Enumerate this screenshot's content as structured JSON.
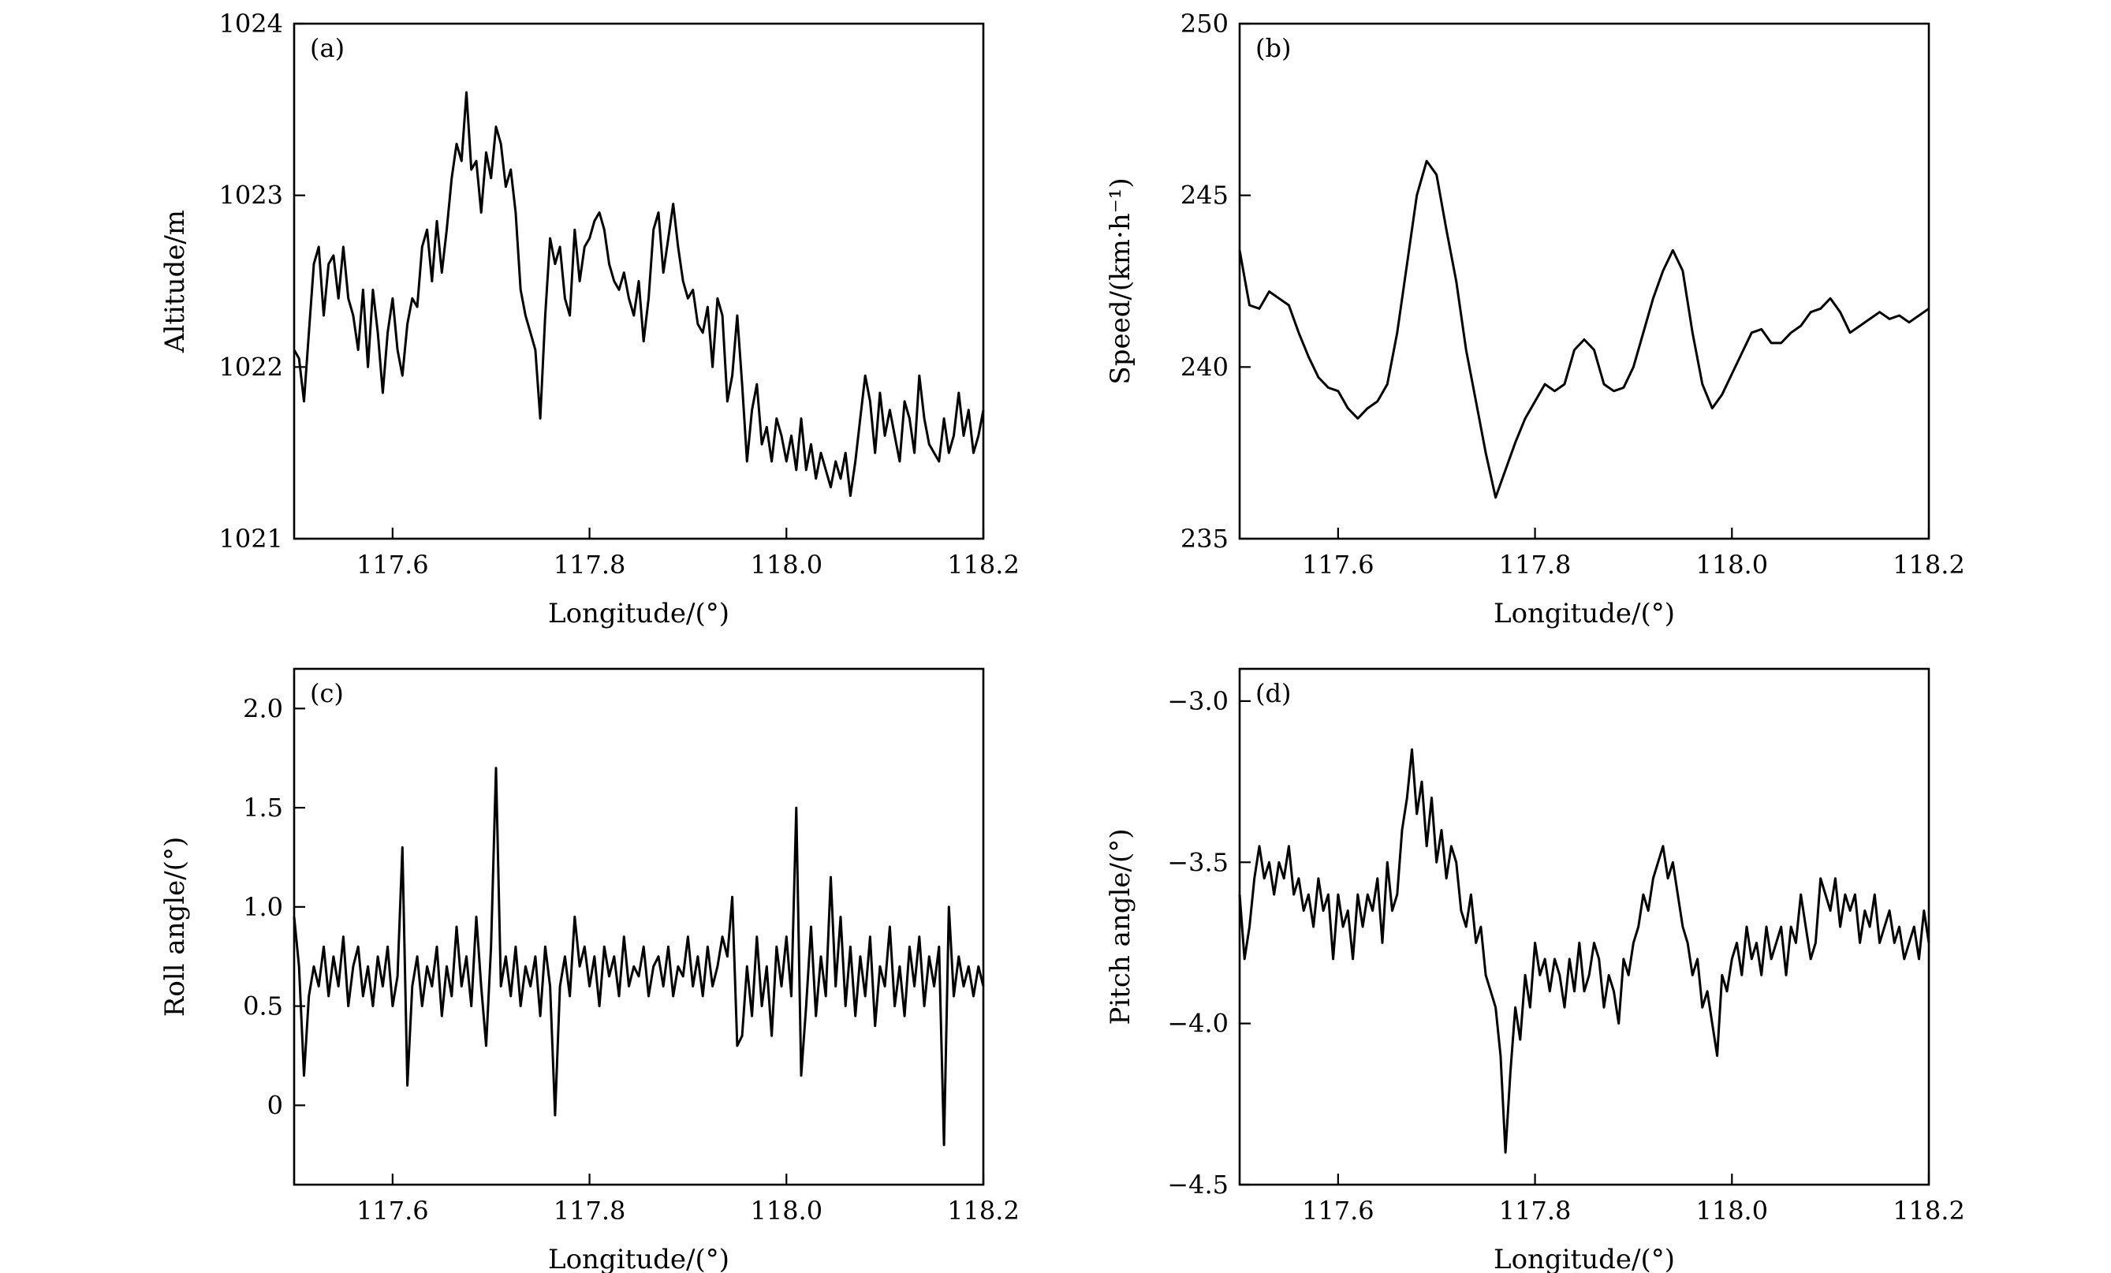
{
  "chart_data": [
    {
      "type": "line",
      "panel_label": "(a)",
      "xlabel": "Longitude/(°)",
      "ylabel": "Altitude/m",
      "xlim": [
        117.5,
        118.2
      ],
      "ylim": [
        1021,
        1024
      ],
      "xticks": [
        117.6,
        117.8,
        118.0,
        118.2
      ],
      "xtick_labels": [
        "117.6",
        "117.8",
        "118.0",
        "118.2"
      ],
      "yticks": [
        1021,
        1022,
        1023,
        1024
      ],
      "ytick_labels": [
        "1021",
        "1022",
        "1023",
        "1024"
      ],
      "grid": false,
      "x": [
        117.5,
        117.505,
        117.51,
        117.515,
        117.52,
        117.525,
        117.53,
        117.535,
        117.54,
        117.545,
        117.55,
        117.555,
        117.56,
        117.565,
        117.57,
        117.575,
        117.58,
        117.585,
        117.59,
        117.595,
        117.6,
        117.605,
        117.61,
        117.615,
        117.62,
        117.625,
        117.63,
        117.635,
        117.64,
        117.645,
        117.65,
        117.655,
        117.66,
        117.665,
        117.67,
        117.675,
        117.68,
        117.685,
        117.69,
        117.695,
        117.7,
        117.705,
        117.71,
        117.715,
        117.72,
        117.725,
        117.73,
        117.735,
        117.74,
        117.745,
        117.75,
        117.755,
        117.76,
        117.765,
        117.77,
        117.775,
        117.78,
        117.785,
        117.79,
        117.795,
        117.8,
        117.805,
        117.81,
        117.815,
        117.82,
        117.825,
        117.83,
        117.835,
        117.84,
        117.845,
        117.85,
        117.855,
        117.86,
        117.865,
        117.87,
        117.875,
        117.88,
        117.885,
        117.89,
        117.895,
        117.9,
        117.905,
        117.91,
        117.915,
        117.92,
        117.925,
        117.93,
        117.935,
        117.94,
        117.945,
        117.95,
        117.955,
        117.96,
        117.965,
        117.97,
        117.975,
        117.98,
        117.985,
        117.99,
        117.995,
        118.0,
        118.005,
        118.01,
        118.015,
        118.02,
        118.025,
        118.03,
        118.035,
        118.04,
        118.045,
        118.05,
        118.055,
        118.06,
        118.065,
        118.07,
        118.075,
        118.08,
        118.085,
        118.09,
        118.095,
        118.1,
        118.105,
        118.11,
        118.115,
        118.12,
        118.125,
        118.13,
        118.135,
        118.14,
        118.145,
        118.15,
        118.155,
        118.16,
        118.165,
        118.17,
        118.175,
        118.18,
        118.185,
        118.19,
        118.195,
        118.2
      ],
      "y": [
        1022.1,
        1022.05,
        1021.8,
        1022.2,
        1022.6,
        1022.7,
        1022.3,
        1022.6,
        1022.65,
        1022.4,
        1022.7,
        1022.4,
        1022.3,
        1022.1,
        1022.45,
        1022.0,
        1022.45,
        1022.2,
        1021.85,
        1022.2,
        1022.4,
        1022.1,
        1021.95,
        1022.25,
        1022.4,
        1022.35,
        1022.7,
        1022.8,
        1022.5,
        1022.85,
        1022.55,
        1022.8,
        1023.1,
        1023.3,
        1023.2,
        1023.6,
        1023.15,
        1023.2,
        1022.9,
        1023.25,
        1023.1,
        1023.4,
        1023.3,
        1023.05,
        1023.15,
        1022.9,
        1022.45,
        1022.3,
        1022.2,
        1022.1,
        1021.7,
        1022.3,
        1022.75,
        1022.6,
        1022.7,
        1022.4,
        1022.3,
        1022.8,
        1022.5,
        1022.7,
        1022.75,
        1022.85,
        1022.9,
        1022.8,
        1022.6,
        1022.5,
        1022.45,
        1022.55,
        1022.4,
        1022.3,
        1022.5,
        1022.15,
        1022.4,
        1022.8,
        1022.9,
        1022.55,
        1022.75,
        1022.95,
        1022.7,
        1022.5,
        1022.4,
        1022.45,
        1022.25,
        1022.2,
        1022.35,
        1022.0,
        1022.4,
        1022.3,
        1021.8,
        1021.95,
        1022.3,
        1021.9,
        1021.45,
        1021.75,
        1021.9,
        1021.55,
        1021.65,
        1021.45,
        1021.7,
        1021.6,
        1021.45,
        1021.6,
        1021.4,
        1021.7,
        1021.4,
        1021.55,
        1021.35,
        1021.5,
        1021.4,
        1021.3,
        1021.45,
        1021.35,
        1021.5,
        1021.25,
        1021.45,
        1021.7,
        1021.95,
        1021.8,
        1021.5,
        1021.85,
        1021.6,
        1021.75,
        1021.6,
        1021.45,
        1021.8,
        1021.7,
        1021.5,
        1021.95,
        1021.7,
        1021.55,
        1021.5,
        1021.45,
        1021.7,
        1021.5,
        1021.6,
        1021.85,
        1021.6,
        1021.75,
        1021.5,
        1021.6,
        1021.75
      ]
    },
    {
      "type": "line",
      "panel_label": "(b)",
      "xlabel": "Longitude/(°)",
      "ylabel": "Speed/(km·h⁻¹)",
      "xlim": [
        117.5,
        118.2
      ],
      "ylim": [
        235,
        250
      ],
      "xticks": [
        117.6,
        117.8,
        118.0,
        118.2
      ],
      "xtick_labels": [
        "117.6",
        "117.8",
        "118.0",
        "118.2"
      ],
      "yticks": [
        235,
        240,
        245,
        250
      ],
      "ytick_labels": [
        "235",
        "240",
        "245",
        "250"
      ],
      "grid": false,
      "x": [
        117.5,
        117.51,
        117.52,
        117.53,
        117.54,
        117.55,
        117.56,
        117.57,
        117.58,
        117.59,
        117.6,
        117.61,
        117.62,
        117.63,
        117.64,
        117.65,
        117.66,
        117.67,
        117.68,
        117.69,
        117.7,
        117.71,
        117.72,
        117.73,
        117.74,
        117.75,
        117.76,
        117.77,
        117.78,
        117.79,
        117.8,
        117.81,
        117.82,
        117.83,
        117.84,
        117.85,
        117.86,
        117.87,
        117.88,
        117.89,
        117.9,
        117.91,
        117.92,
        117.93,
        117.94,
        117.95,
        117.96,
        117.97,
        117.98,
        117.99,
        118.0,
        118.01,
        118.02,
        118.03,
        118.04,
        118.05,
        118.06,
        118.07,
        118.08,
        118.09,
        118.1,
        118.11,
        118.12,
        118.13,
        118.14,
        118.15,
        118.16,
        118.17,
        118.18,
        118.19,
        118.2
      ],
      "y": [
        243.4,
        241.8,
        241.7,
        242.2,
        242.0,
        241.8,
        241.0,
        240.3,
        239.7,
        239.4,
        239.3,
        238.8,
        238.5,
        238.8,
        239.0,
        239.5,
        241.0,
        243.0,
        245.0,
        246.0,
        245.6,
        244.0,
        242.5,
        240.5,
        239.0,
        237.5,
        236.2,
        237.0,
        237.8,
        238.5,
        239.0,
        239.5,
        239.3,
        239.5,
        240.5,
        240.8,
        240.5,
        239.5,
        239.3,
        239.4,
        240.0,
        241.0,
        242.0,
        242.8,
        243.4,
        242.8,
        241.0,
        239.5,
        238.8,
        239.2,
        239.8,
        240.4,
        241.0,
        241.1,
        240.7,
        240.7,
        241.0,
        241.2,
        241.6,
        241.7,
        242.0,
        241.6,
        241.0,
        241.2,
        241.4,
        241.6,
        241.4,
        241.5,
        241.3,
        241.5,
        241.7
      ]
    },
    {
      "type": "line",
      "panel_label": "(c)",
      "xlabel": "Longitude/(°)",
      "ylabel": "Roll angle/(°)",
      "xlim": [
        117.5,
        118.2
      ],
      "ylim": [
        -0.4,
        2.2
      ],
      "xticks": [
        117.6,
        117.8,
        118.0,
        118.2
      ],
      "xtick_labels": [
        "117.6",
        "117.8",
        "118.0",
        "118.2"
      ],
      "yticks": [
        0,
        0.5,
        1.0,
        1.5,
        2.0
      ],
      "ytick_labels": [
        "0",
        "0.5",
        "1.0",
        "1.5",
        "2.0"
      ],
      "grid": false,
      "x": [
        117.5,
        117.505,
        117.51,
        117.515,
        117.52,
        117.525,
        117.53,
        117.535,
        117.54,
        117.545,
        117.55,
        117.555,
        117.56,
        117.565,
        117.57,
        117.575,
        117.58,
        117.585,
        117.59,
        117.595,
        117.6,
        117.605,
        117.61,
        117.615,
        117.62,
        117.625,
        117.63,
        117.635,
        117.64,
        117.645,
        117.65,
        117.655,
        117.66,
        117.665,
        117.67,
        117.675,
        117.68,
        117.685,
        117.69,
        117.695,
        117.7,
        117.705,
        117.71,
        117.715,
        117.72,
        117.725,
        117.73,
        117.735,
        117.74,
        117.745,
        117.75,
        117.755,
        117.76,
        117.765,
        117.77,
        117.775,
        117.78,
        117.785,
        117.79,
        117.795,
        117.8,
        117.805,
        117.81,
        117.815,
        117.82,
        117.825,
        117.83,
        117.835,
        117.84,
        117.845,
        117.85,
        117.855,
        117.86,
        117.865,
        117.87,
        117.875,
        117.88,
        117.885,
        117.89,
        117.895,
        117.9,
        117.905,
        117.91,
        117.915,
        117.92,
        117.925,
        117.93,
        117.935,
        117.94,
        117.945,
        117.95,
        117.955,
        117.96,
        117.965,
        117.97,
        117.975,
        117.98,
        117.985,
        117.99,
        117.995,
        118.0,
        118.005,
        118.01,
        118.015,
        118.02,
        118.025,
        118.03,
        118.035,
        118.04,
        118.045,
        118.05,
        118.055,
        118.06,
        118.065,
        118.07,
        118.075,
        118.08,
        118.085,
        118.09,
        118.095,
        118.1,
        118.105,
        118.11,
        118.115,
        118.12,
        118.125,
        118.13,
        118.135,
        118.14,
        118.145,
        118.15,
        118.155,
        118.16,
        118.165,
        118.17,
        118.175,
        118.18,
        118.185,
        118.19,
        118.195,
        118.2
      ],
      "y": [
        0.95,
        0.7,
        0.15,
        0.55,
        0.7,
        0.6,
        0.8,
        0.55,
        0.75,
        0.6,
        0.85,
        0.5,
        0.7,
        0.8,
        0.55,
        0.7,
        0.5,
        0.75,
        0.6,
        0.8,
        0.5,
        0.65,
        1.3,
        0.1,
        0.6,
        0.75,
        0.5,
        0.7,
        0.6,
        0.8,
        0.45,
        0.7,
        0.55,
        0.9,
        0.6,
        0.75,
        0.5,
        0.95,
        0.6,
        0.3,
        0.8,
        1.7,
        0.6,
        0.75,
        0.55,
        0.8,
        0.5,
        0.7,
        0.6,
        0.75,
        0.45,
        0.8,
        0.6,
        -0.05,
        0.6,
        0.75,
        0.55,
        0.95,
        0.7,
        0.8,
        0.6,
        0.75,
        0.5,
        0.8,
        0.65,
        0.75,
        0.55,
        0.85,
        0.6,
        0.7,
        0.65,
        0.8,
        0.55,
        0.7,
        0.75,
        0.6,
        0.8,
        0.55,
        0.7,
        0.65,
        0.85,
        0.6,
        0.75,
        0.55,
        0.8,
        0.6,
        0.7,
        0.85,
        0.75,
        1.05,
        0.3,
        0.35,
        0.7,
        0.45,
        0.85,
        0.5,
        0.7,
        0.35,
        0.8,
        0.6,
        0.85,
        0.55,
        1.5,
        0.15,
        0.5,
        0.9,
        0.45,
        0.75,
        0.55,
        1.15,
        0.6,
        0.95,
        0.5,
        0.8,
        0.45,
        0.75,
        0.55,
        0.85,
        0.4,
        0.7,
        0.6,
        0.9,
        0.5,
        0.7,
        0.45,
        0.8,
        0.6,
        0.85,
        0.5,
        0.75,
        0.6,
        0.8,
        -0.2,
        1.0,
        0.55,
        0.75,
        0.6,
        0.7,
        0.55,
        0.7,
        0.6
      ]
    },
    {
      "type": "line",
      "panel_label": "(d)",
      "xlabel": "Longitude/(°)",
      "ylabel": "Pitch angle/(°)",
      "xlim": [
        117.5,
        118.2
      ],
      "ylim": [
        -4.5,
        -2.9
      ],
      "xticks": [
        117.6,
        117.8,
        118.0,
        118.2
      ],
      "xtick_labels": [
        "117.6",
        "117.8",
        "118.0",
        "118.2"
      ],
      "yticks": [
        -4.5,
        -4.0,
        -3.5,
        -3.0
      ],
      "ytick_labels": [
        "−4.5",
        "−4.0",
        "−3.5",
        "−3.0"
      ],
      "grid": false,
      "x": [
        117.5,
        117.505,
        117.51,
        117.515,
        117.52,
        117.525,
        117.53,
        117.535,
        117.54,
        117.545,
        117.55,
        117.555,
        117.56,
        117.565,
        117.57,
        117.575,
        117.58,
        117.585,
        117.59,
        117.595,
        117.6,
        117.605,
        117.61,
        117.615,
        117.62,
        117.625,
        117.63,
        117.635,
        117.64,
        117.645,
        117.65,
        117.655,
        117.66,
        117.665,
        117.67,
        117.675,
        117.68,
        117.685,
        117.69,
        117.695,
        117.7,
        117.705,
        117.71,
        117.715,
        117.72,
        117.725,
        117.73,
        117.735,
        117.74,
        117.745,
        117.75,
        117.755,
        117.76,
        117.765,
        117.77,
        117.775,
        117.78,
        117.785,
        117.79,
        117.795,
        117.8,
        117.805,
        117.81,
        117.815,
        117.82,
        117.825,
        117.83,
        117.835,
        117.84,
        117.845,
        117.85,
        117.855,
        117.86,
        117.865,
        117.87,
        117.875,
        117.88,
        117.885,
        117.89,
        117.895,
        117.9,
        117.905,
        117.91,
        117.915,
        117.92,
        117.925,
        117.93,
        117.935,
        117.94,
        117.945,
        117.95,
        117.955,
        117.96,
        117.965,
        117.97,
        117.975,
        117.98,
        117.985,
        117.99,
        117.995,
        118.0,
        118.005,
        118.01,
        118.015,
        118.02,
        118.025,
        118.03,
        118.035,
        118.04,
        118.045,
        118.05,
        118.055,
        118.06,
        118.065,
        118.07,
        118.075,
        118.08,
        118.085,
        118.09,
        118.095,
        118.1,
        118.105,
        118.11,
        118.115,
        118.12,
        118.125,
        118.13,
        118.135,
        118.14,
        118.145,
        118.15,
        118.155,
        118.16,
        118.165,
        118.17,
        118.175,
        118.18,
        118.185,
        118.19,
        118.195,
        118.2
      ],
      "y": [
        -3.6,
        -3.8,
        -3.7,
        -3.55,
        -3.45,
        -3.55,
        -3.5,
        -3.6,
        -3.5,
        -3.55,
        -3.45,
        -3.6,
        -3.55,
        -3.65,
        -3.6,
        -3.7,
        -3.55,
        -3.65,
        -3.6,
        -3.8,
        -3.6,
        -3.7,
        -3.65,
        -3.8,
        -3.6,
        -3.7,
        -3.6,
        -3.65,
        -3.55,
        -3.75,
        -3.5,
        -3.65,
        -3.6,
        -3.4,
        -3.3,
        -3.15,
        -3.35,
        -3.25,
        -3.45,
        -3.3,
        -3.5,
        -3.4,
        -3.55,
        -3.45,
        -3.5,
        -3.65,
        -3.7,
        -3.6,
        -3.75,
        -3.7,
        -3.85,
        -3.9,
        -3.95,
        -4.1,
        -4.4,
        -4.15,
        -3.95,
        -4.05,
        -3.85,
        -3.95,
        -3.75,
        -3.85,
        -3.8,
        -3.9,
        -3.8,
        -3.85,
        -3.95,
        -3.8,
        -3.9,
        -3.75,
        -3.9,
        -3.85,
        -3.75,
        -3.8,
        -3.95,
        -3.85,
        -3.9,
        -4.0,
        -3.8,
        -3.85,
        -3.75,
        -3.7,
        -3.6,
        -3.65,
        -3.55,
        -3.5,
        -3.45,
        -3.55,
        -3.5,
        -3.6,
        -3.7,
        -3.75,
        -3.85,
        -3.8,
        -3.95,
        -3.9,
        -4.0,
        -4.1,
        -3.85,
        -3.9,
        -3.8,
        -3.75,
        -3.85,
        -3.7,
        -3.8,
        -3.75,
        -3.85,
        -3.7,
        -3.8,
        -3.75,
        -3.7,
        -3.85,
        -3.7,
        -3.75,
        -3.6,
        -3.7,
        -3.8,
        -3.75,
        -3.55,
        -3.6,
        -3.65,
        -3.55,
        -3.7,
        -3.6,
        -3.65,
        -3.6,
        -3.75,
        -3.65,
        -3.7,
        -3.6,
        -3.75,
        -3.7,
        -3.65,
        -3.75,
        -3.7,
        -3.8,
        -3.75,
        -3.7,
        -3.8,
        -3.65,
        -3.75
      ]
    }
  ]
}
